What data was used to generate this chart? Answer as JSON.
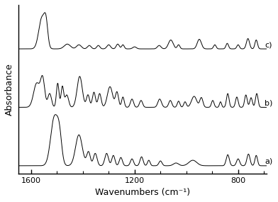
{
  "title": "",
  "xlabel": "Wavenumbers (cm⁻¹)",
  "ylabel": "Absorbance",
  "xlim": [
    1650,
    690
  ],
  "xticks": [
    1600,
    1200,
    800
  ],
  "xticklabels": [
    "1600",
    "1200",
    "800"
  ],
  "labels": [
    "c)",
    "b)",
    "a)"
  ],
  "offsets": [
    1.7,
    0.85,
    0.0
  ],
  "line_color": "#000000",
  "background_color": "#ffffff"
}
